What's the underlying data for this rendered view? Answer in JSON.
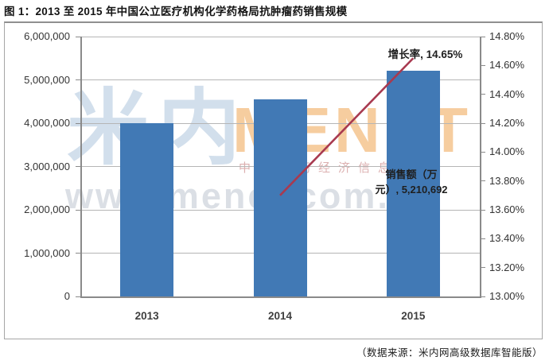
{
  "title": "图 1：2013 至 2015 年中国公立医疗机构化学药格局抗肿瘤药销售规模",
  "source_note": "（数据来源：米内网高级数据库智能版）",
  "watermark": {
    "cn_large": "米内",
    "brand": "MENET",
    "tagline": "中国医药经济信息平台",
    "url": "www.menet.com.cn"
  },
  "annotations": {
    "growth_label": "增长率, 14.65%",
    "sales_label_line1": "销售额（万",
    "sales_label_line2": "元）, 5,210,692"
  },
  "colors": {
    "bar": "#4179b5",
    "line": "#a83a50",
    "grid": "#b5b5b5",
    "axis": "#8a8a8a",
    "label_text": "#333333"
  },
  "chart_data": {
    "type": "combo_bar_line",
    "title": "2013 至 2015 年中国公立医疗机构化学药格局抗肿瘤药销售规模",
    "categories": [
      "2013",
      "2014",
      "2015"
    ],
    "series": [
      {
        "name": "销售额（万元）",
        "type": "bar",
        "axis": "left",
        "values": [
          3997000,
          4545000,
          5210692
        ]
      },
      {
        "name": "增长率",
        "type": "line",
        "axis": "right",
        "values": [
          null,
          13.7,
          14.65
        ]
      }
    ],
    "left_axis": {
      "min": 0,
      "max": 6000000,
      "step": 1000000,
      "tick_labels": [
        "0",
        "1,000,000",
        "2,000,000",
        "3,000,000",
        "4,000,000",
        "5,000,000",
        "6,000,000"
      ]
    },
    "right_axis": {
      "min": 13.0,
      "max": 14.8,
      "step": 0.2,
      "tick_labels": [
        "13.00%",
        "13.20%",
        "13.40%",
        "13.60%",
        "13.80%",
        "14.00%",
        "14.20%",
        "14.40%",
        "14.60%",
        "14.80%"
      ]
    },
    "grid": true,
    "legend": "none",
    "data_point_labels": [
      {
        "series": "增长率",
        "category": "2015",
        "text": "增长率, 14.65%"
      },
      {
        "series": "销售额（万元）",
        "category": "2015",
        "text": "销售额（万元）, 5,210,692"
      }
    ]
  }
}
